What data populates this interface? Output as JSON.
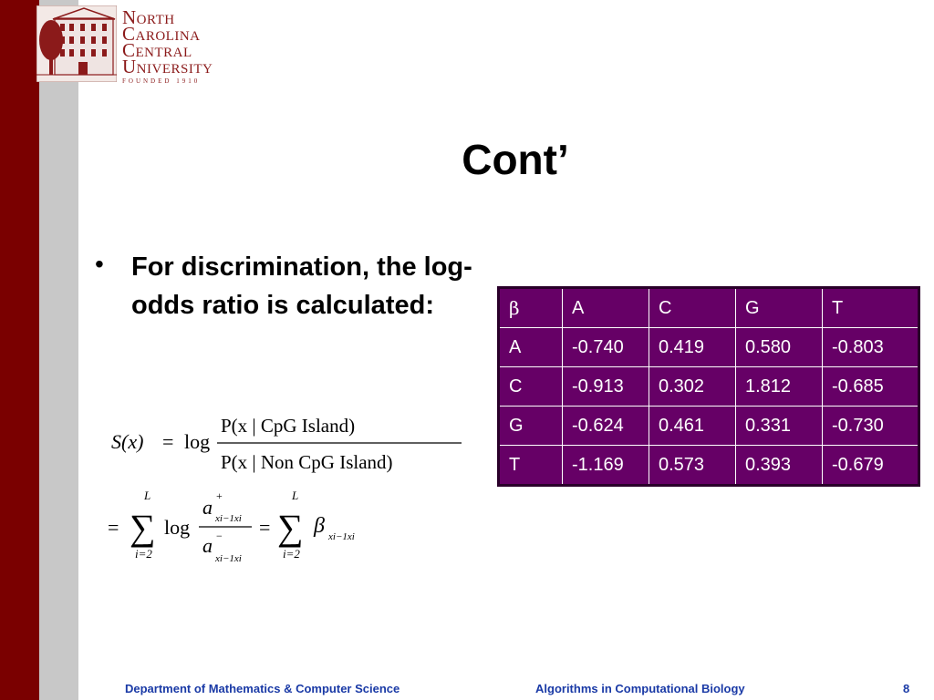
{
  "logo": {
    "lines": [
      "North",
      "Carolina",
      "Central",
      "University"
    ],
    "founded": "FOUNDED 1910"
  },
  "slide": {
    "title": "Cont’",
    "bullet": "For discrimination, the log-odds ratio is calculated:"
  },
  "equation": {
    "lhs": "S(x)",
    "log": "log",
    "numerator": "P(x | CpG Island)",
    "denominator": "P(x | Non CpG Island)",
    "sum_upper": "L",
    "sum_lower": "i=2",
    "a": "a",
    "plus": "+",
    "minus": "−",
    "subscript": "xi−1xi",
    "beta": "β"
  },
  "table": {
    "header": [
      "β",
      "A",
      "C",
      "G",
      "T"
    ],
    "rows": [
      [
        "A",
        "-0.740",
        "0.419",
        "0.580",
        "-0.803"
      ],
      [
        "C",
        "-0.913",
        "0.302",
        "1.812",
        "-0.685"
      ],
      [
        "G",
        "-0.624",
        "0.461",
        "0.331",
        "-0.730"
      ],
      [
        "T",
        "-1.169",
        "0.573",
        "0.393",
        "-0.679"
      ]
    ],
    "background": "#660066"
  },
  "footer": {
    "left": "Department of Mathematics & Computer Science",
    "center": "Algorithms in Computational Biology",
    "page": "8"
  },
  "colors": {
    "stripe_red": "#7a0000",
    "stripe_gray": "#c8c8c8",
    "footer_text": "#1a3aa6",
    "logo": "#8b1a1a"
  }
}
